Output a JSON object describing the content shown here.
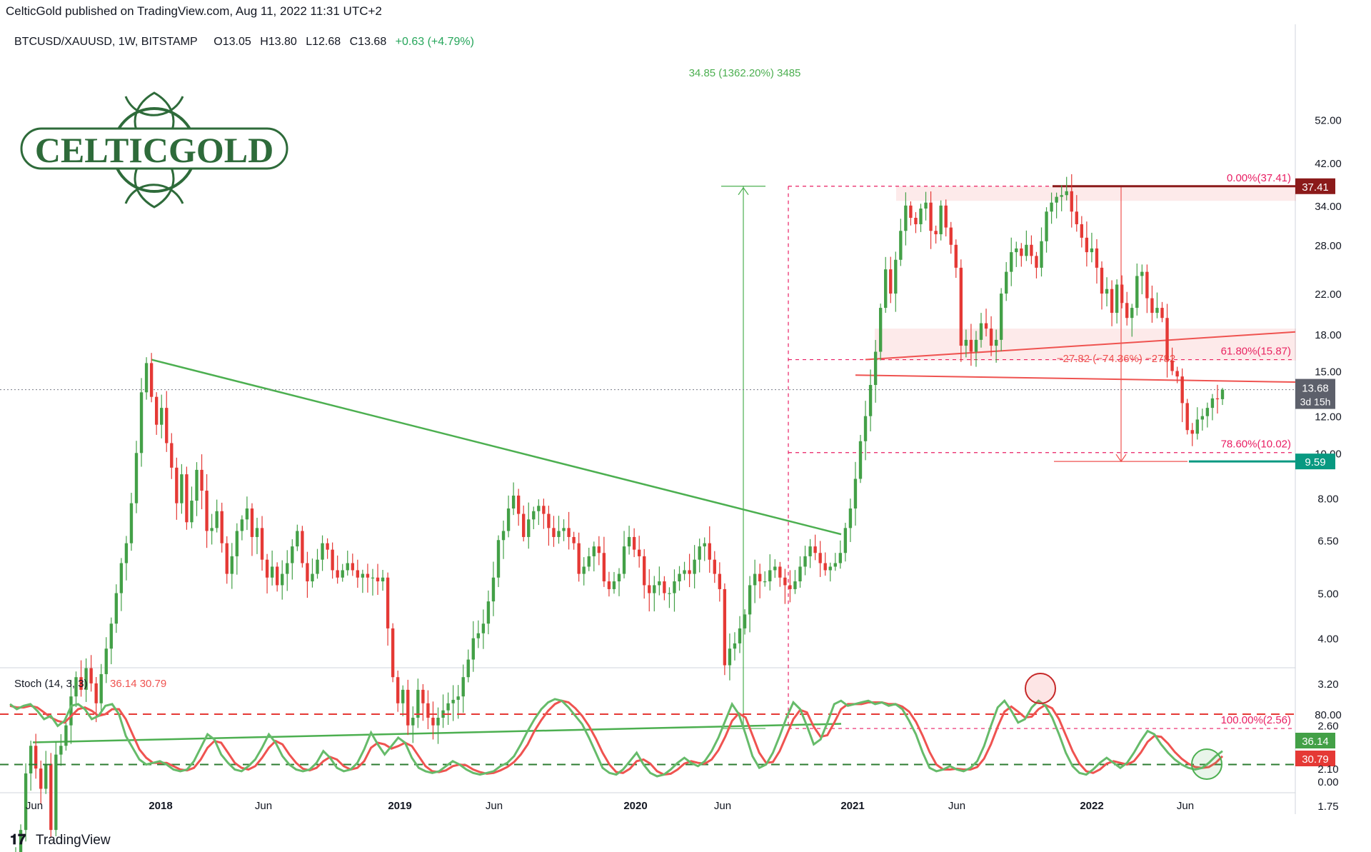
{
  "header": {
    "published_line": "CelticGold published on TradingView.com, Aug 11, 2022 11:31 UTC+2",
    "symbol_line": "BTCUSD/XAUUSD, 1W, BITSTAMP",
    "ohlc": {
      "open": "O13.05",
      "high": "H13.80",
      "low": "L12.68",
      "close": "C13.68",
      "change": "+0.63 (+4.79%)"
    }
  },
  "logo": {
    "text": "CELTICGOLD"
  },
  "footer": {
    "brand": "TradingView"
  },
  "colors": {
    "up": "#43a047",
    "down": "#e53935",
    "fib": "#e91e63",
    "trend_green": "#4caf50",
    "trend_red": "#ef5350",
    "stoch_k": "#66bb6a",
    "stoch_d": "#ef5350",
    "last_price_label": "#5d606b",
    "low_label": "#089981",
    "high_label": "#8b1a1a",
    "logo_green": "#2e6b3a"
  },
  "price_axis": {
    "scale": "log",
    "ticks": [
      "52.00",
      "42.00",
      "34.00",
      "28.00",
      "22.00",
      "18.00",
      "15.00",
      "12.00",
      "10.00",
      "8.00",
      "6.50",
      "5.00",
      "4.00",
      "3.20",
      "2.60",
      "2.10",
      "1.75"
    ],
    "last_price": "13.68",
    "countdown": "3d 15h",
    "high_label": "37.41",
    "low_label": "9.59"
  },
  "time_axis": {
    "labels": [
      "Jun",
      "2018",
      "Jun",
      "2019",
      "Jun",
      "2020",
      "Jun",
      "2021",
      "Jun",
      "2022",
      "Jun"
    ]
  },
  "annotations": {
    "measure_up": "34.85 (1362.20%) 3485",
    "measure_down": "−27.82 (−74.36%) −2782",
    "fib_levels": [
      {
        "label": "0.00%(37.41)",
        "value": 37.41
      },
      {
        "label": "61.80%(15.87)",
        "value": 15.87
      },
      {
        "label": "78.60%(10.02)",
        "value": 10.02
      },
      {
        "label": "100.00%(2.56)",
        "value": 2.56
      }
    ]
  },
  "stoch": {
    "title": "Stoch (14, 3, 3)",
    "value_k": "36.14",
    "value_d": "30.79",
    "ticks": [
      "80.00",
      "0.00"
    ],
    "upper_band": 80,
    "lower_band": 20
  },
  "chart_data": {
    "type": "candlestick",
    "title": "BTCUSD/XAUUSD, 1W, BITSTAMP",
    "y_scale": "log",
    "ylim": [
      1.5,
      56
    ],
    "x_range": [
      "2017-04",
      "2022-12"
    ],
    "series": [
      {
        "name": "BTCUSD/XAUUSD",
        "close": [
          1.35,
          1.55,
          2.05,
          2.35,
          2.1,
          1.9,
          2.15,
          1.55,
          2.25,
          2.35,
          2.6,
          3.0,
          3.3,
          3.1,
          3.45,
          3.2,
          2.9,
          3.35,
          3.8,
          4.3,
          5.0,
          5.8,
          6.4,
          7.8,
          10.0,
          13.5,
          15.6,
          13.2,
          11.5,
          12.5,
          10.5,
          9.3,
          7.8,
          9.0,
          7.1,
          7.9,
          9.2,
          8.3,
          6.8,
          6.9,
          7.5,
          6.4,
          5.5,
          6.0,
          6.8,
          7.2,
          7.6,
          6.6,
          6.9,
          5.9,
          5.4,
          5.7,
          5.2,
          5.5,
          5.8,
          6.3,
          6.8,
          5.8,
          5.3,
          5.5,
          5.9,
          6.4,
          6.2,
          5.6,
          5.4,
          5.6,
          5.8,
          5.6,
          5.4,
          5.5,
          5.4,
          5.4,
          5.3,
          5.4,
          4.2,
          3.3,
          2.9,
          3.1,
          2.6,
          2.7,
          3.1,
          2.9,
          2.7,
          2.6,
          2.7,
          2.8,
          2.9,
          2.95,
          3.0,
          3.3,
          3.6,
          4.0,
          4.1,
          4.3,
          4.8,
          5.4,
          6.5,
          6.8,
          7.6,
          8.1,
          7.4,
          6.6,
          7.2,
          7.5,
          7.7,
          7.4,
          6.9,
          6.6,
          6.8,
          6.9,
          6.6,
          6.4,
          5.5,
          5.7,
          6.0,
          6.3,
          6.1,
          5.3,
          5.1,
          5.3,
          5.5,
          6.3,
          6.6,
          6.2,
          6.0,
          5.2,
          5.0,
          5.2,
          5.3,
          5.0,
          5.0,
          5.3,
          5.5,
          5.6,
          5.5,
          5.9,
          6.3,
          6.4,
          5.9,
          5.5,
          5.1,
          3.5,
          3.8,
          3.9,
          4.2,
          4.5,
          5.2,
          5.5,
          5.3,
          5.3,
          5.6,
          5.7,
          5.4,
          5.2,
          5.1,
          5.3,
          5.7,
          6.0,
          6.3,
          6.1,
          5.8,
          5.6,
          5.7,
          5.8,
          6.1,
          6.9,
          7.6,
          8.8,
          10.6,
          12.0,
          14.0,
          16.5,
          20.5,
          24.8,
          22.0,
          26.0,
          30.0,
          34.0,
          32.0,
          31.0,
          33.5,
          34.5,
          30.0,
          29.5,
          34.0,
          30.5,
          28.0,
          25.0,
          17.0,
          17.5,
          16.5,
          17.5,
          19.0,
          18.5,
          17.0,
          17.5,
          22.0,
          24.5,
          27.0,
          27.5,
          26.5,
          28.0,
          26.5,
          25.0,
          28.5,
          33.0,
          34.5,
          35.5,
          35.8,
          36.5,
          33.0,
          31.0,
          29.0,
          27.0,
          27.5,
          25.0,
          22.0,
          22.5,
          20.0,
          23.0,
          21.0,
          19.5,
          20.5,
          24.0,
          24.5,
          21.5,
          20.0,
          20.5,
          19.5,
          15.8,
          15.0,
          14.6,
          12.8,
          11.2,
          11.0,
          11.8,
          12.0,
          12.5,
          13.1,
          13.05,
          13.68
        ]
      }
    ],
    "last_bar": {
      "open": 13.05,
      "high": 13.8,
      "low": 12.68,
      "close": 13.68,
      "change": 0.63,
      "change_pct": 4.79
    },
    "stoch_k": [
      92,
      86,
      90,
      92,
      84,
      74,
      78,
      66,
      72,
      90,
      92,
      86,
      74,
      78,
      90,
      92,
      80,
      54,
      40,
      26,
      20,
      22,
      24,
      20,
      14,
      12,
      14,
      24,
      40,
      56,
      50,
      32,
      22,
      14,
      12,
      18,
      26,
      40,
      56,
      46,
      30,
      20,
      14,
      12,
      14,
      22,
      36,
      28,
      16,
      12,
      14,
      22,
      38,
      58,
      44,
      32,
      42,
      52,
      46,
      28,
      16,
      12,
      10,
      12,
      18,
      24,
      20,
      14,
      10,
      8,
      10,
      12,
      18,
      22,
      30,
      44,
      60,
      74,
      86,
      94,
      98,
      96,
      88,
      78,
      68,
      52,
      34,
      16,
      10,
      8,
      14,
      24,
      34,
      20,
      10,
      6,
      8,
      14,
      22,
      28,
      22,
      18,
      24,
      36,
      52,
      72,
      92,
      80,
      56,
      30,
      16,
      20,
      34,
      54,
      76,
      94,
      86,
      66,
      44,
      50,
      70,
      92,
      96,
      90,
      92,
      94,
      96,
      92,
      94,
      90,
      92,
      86,
      72,
      56,
      34,
      16,
      12,
      14,
      18,
      14,
      12,
      16,
      24,
      42,
      66,
      88,
      96,
      84,
      70,
      74,
      88,
      96,
      90,
      76,
      56,
      34,
      18,
      10,
      8,
      14,
      22,
      28,
      22,
      16,
      22,
      34,
      48,
      60,
      56,
      44,
      34,
      26,
      20,
      16,
      14,
      16,
      22,
      30,
      36
    ],
    "stoch_d": [
      90,
      88,
      88,
      90,
      88,
      82,
      76,
      72,
      70,
      78,
      86,
      88,
      84,
      78,
      80,
      86,
      86,
      74,
      56,
      38,
      28,
      22,
      22,
      22,
      18,
      14,
      13,
      16,
      26,
      40,
      48,
      46,
      34,
      22,
      16,
      14,
      18,
      28,
      40,
      48,
      44,
      32,
      22,
      15,
      13,
      16,
      24,
      29,
      26,
      18,
      14,
      16,
      24,
      40,
      46,
      44,
      39,
      42,
      46,
      42,
      30,
      18,
      12,
      11,
      13,
      18,
      20,
      19,
      14,
      11,
      9,
      10,
      13,
      17,
      23,
      32,
      44,
      60,
      73,
      84,
      92,
      96,
      94,
      87,
      78,
      66,
      51,
      34,
      20,
      11,
      10,
      15,
      24,
      26,
      21,
      12,
      8,
      9,
      14,
      21,
      24,
      22,
      21,
      26,
      37,
      53,
      72,
      81,
      76,
      55,
      34,
      22,
      23,
      36,
      55,
      74,
      85,
      82,
      65,
      53,
      55,
      70,
      86,
      92,
      92,
      92,
      94,
      94,
      94,
      92,
      92,
      89,
      83,
      71,
      54,
      35,
      20,
      14,
      14,
      15,
      14,
      14,
      17,
      27,
      44,
      65,
      83,
      89,
      83,
      76,
      77,
      86,
      91,
      87,
      74,
      55,
      36,
      21,
      12,
      10,
      14,
      21,
      24,
      22,
      20,
      24,
      34,
      47,
      54,
      53,
      45,
      35,
      27,
      21,
      17,
      16,
      17,
      22,
      30
    ]
  }
}
